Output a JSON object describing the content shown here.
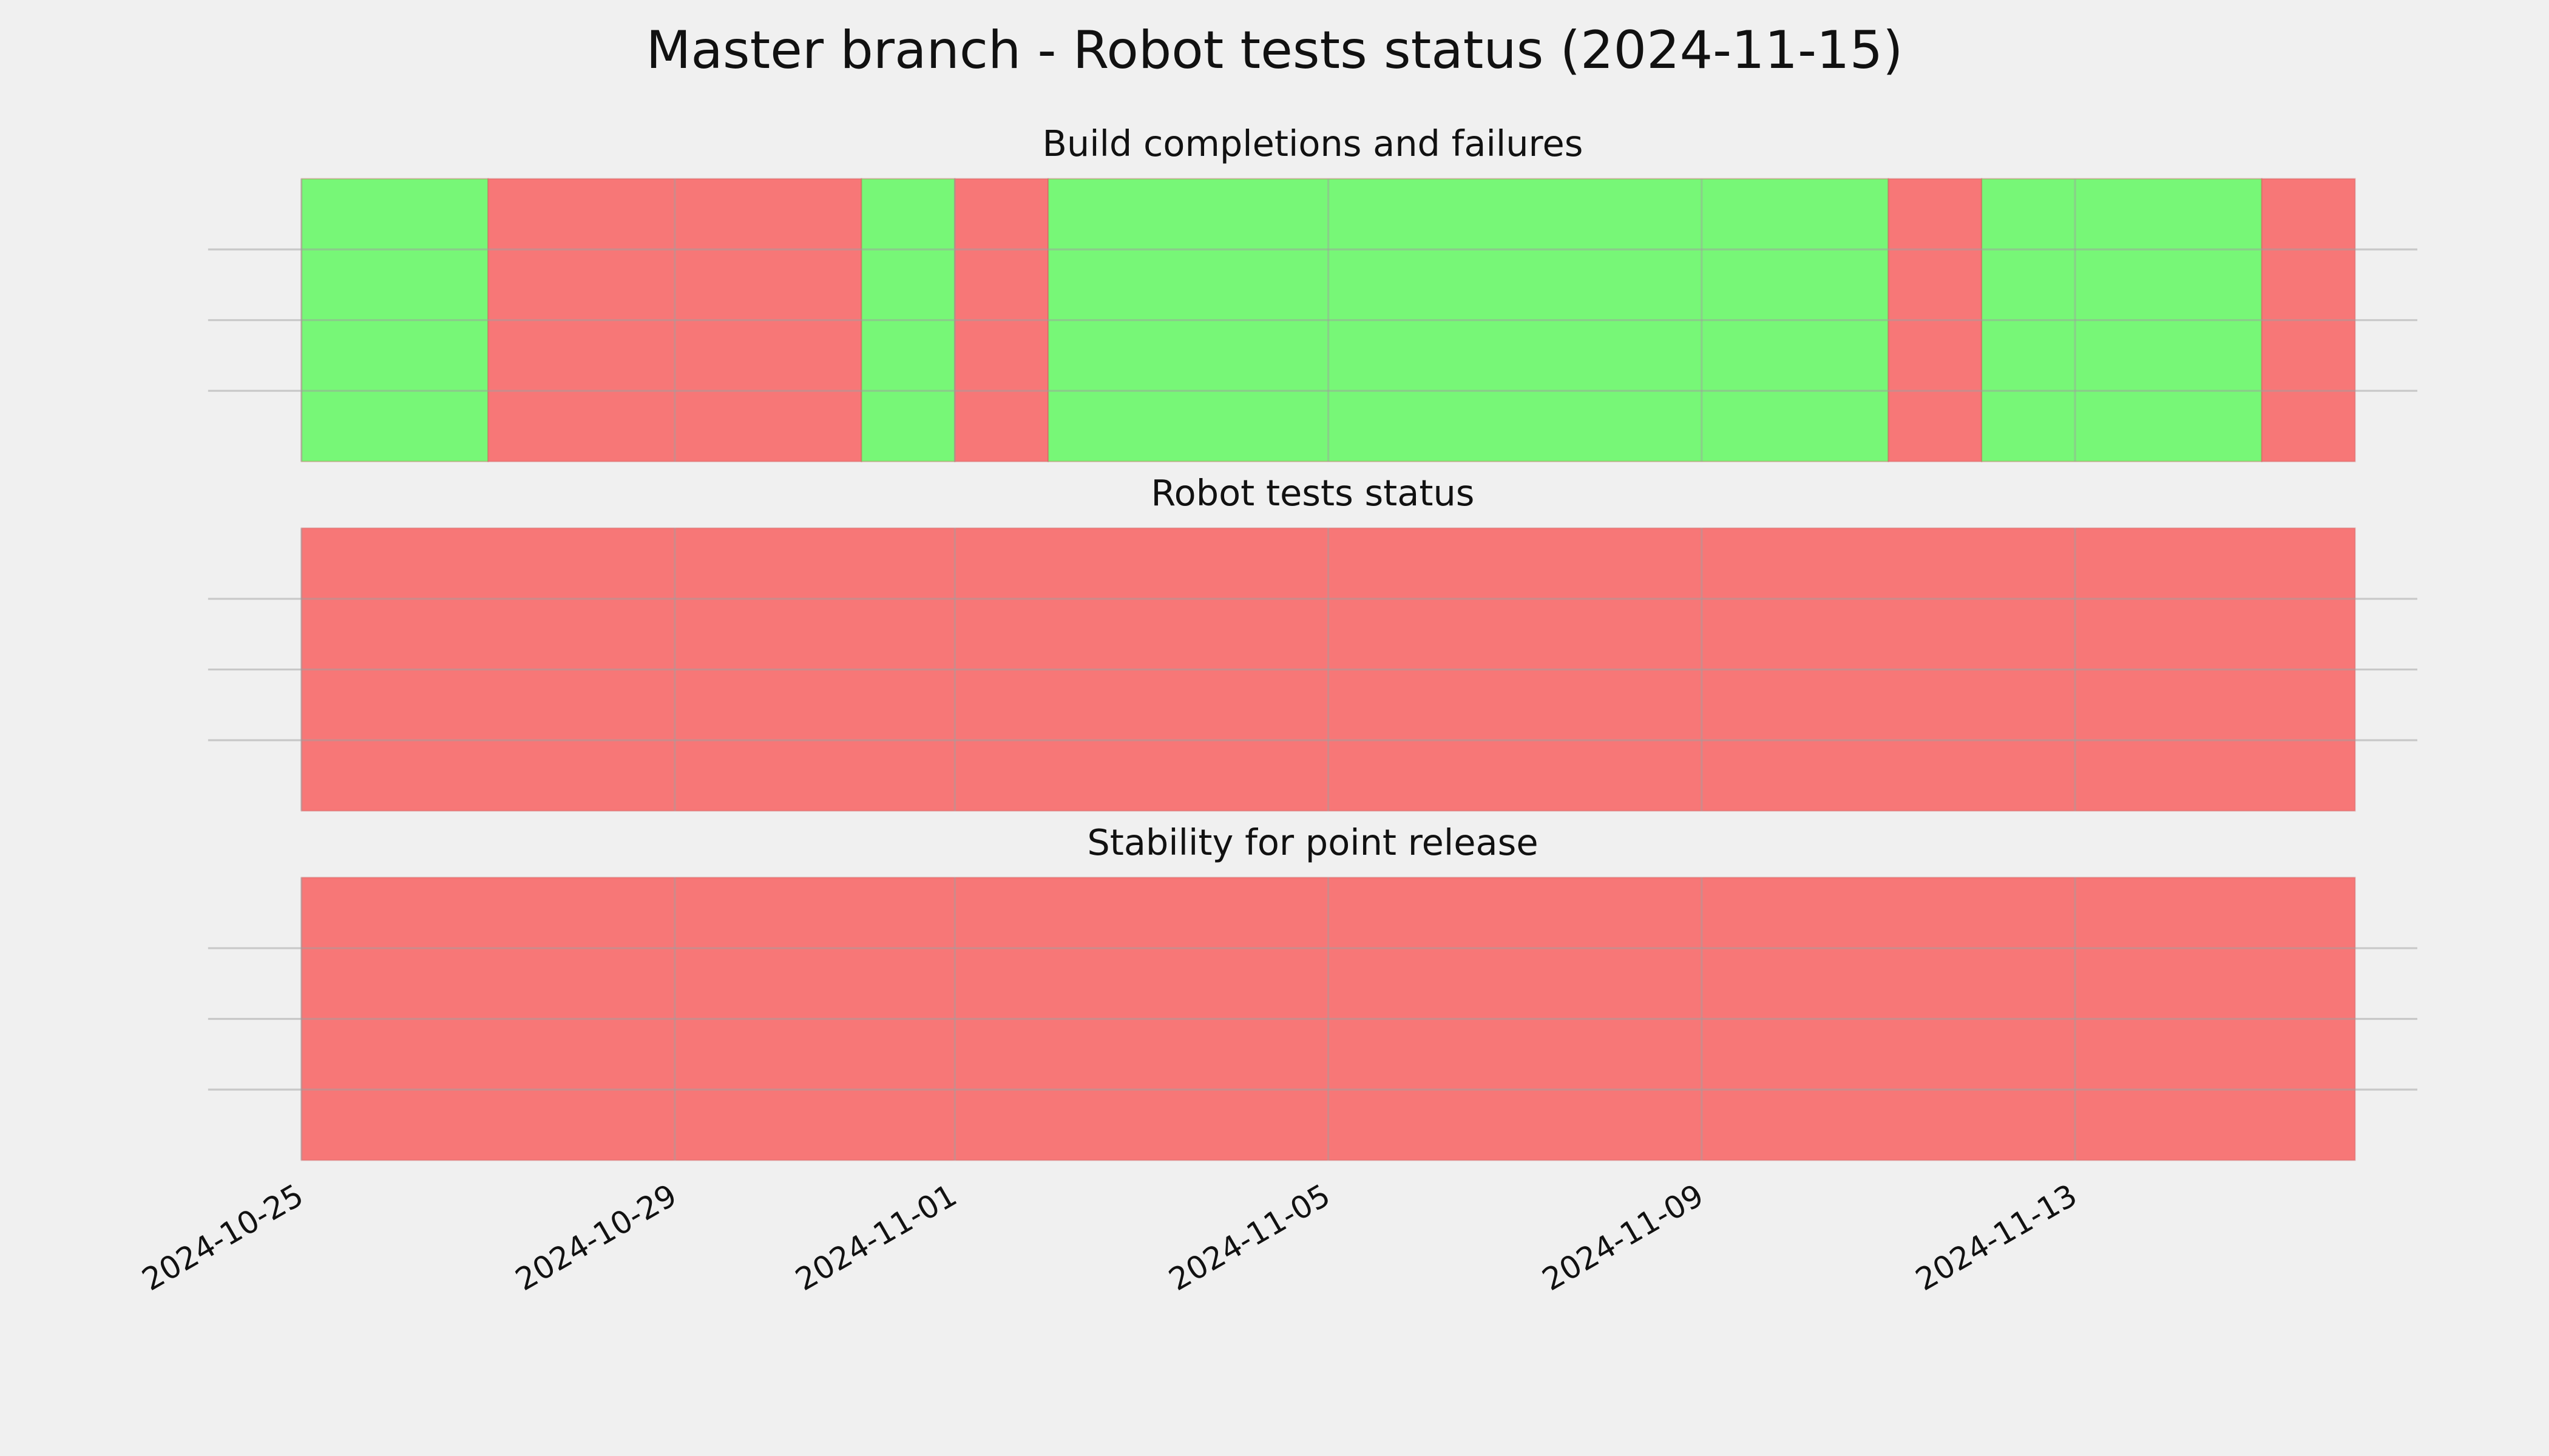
{
  "chart_data": {
    "type": "timeline",
    "title": "Master branch - Robot tests status (2024-11-15)",
    "xlim": [
      "2024-10-24",
      "2024-11-16T16:00"
    ],
    "xticks": [
      "2024-10-25",
      "2024-10-29",
      "2024-11-01",
      "2024-11-05",
      "2024-11-09",
      "2024-11-13"
    ],
    "grid": true,
    "panels": [
      {
        "title": "Build completions and failures",
        "ylim": [
          0,
          1
        ],
        "yticks": [
          0.25,
          0.5,
          0.75
        ],
        "segments": [
          {
            "start": "2024-10-25",
            "end": "2024-10-27",
            "color": "#77f777"
          },
          {
            "start": "2024-10-27",
            "end": "2024-10-31",
            "color": "#f77777"
          },
          {
            "start": "2024-10-31",
            "end": "2024-11-01",
            "color": "#77f777"
          },
          {
            "start": "2024-11-01",
            "end": "2024-11-02",
            "color": "#f77777"
          },
          {
            "start": "2024-11-02",
            "end": "2024-11-11",
            "color": "#77f777"
          },
          {
            "start": "2024-11-11",
            "end": "2024-11-12",
            "color": "#f77777"
          },
          {
            "start": "2024-11-12",
            "end": "2024-11-15",
            "color": "#77f777"
          },
          {
            "start": "2024-11-15",
            "end": "2024-11-16",
            "color": "#f77777"
          }
        ]
      },
      {
        "title": "Robot tests status",
        "ylim": [
          0,
          1
        ],
        "yticks": [
          0.25,
          0.5,
          0.75
        ],
        "segments": [
          {
            "start": "2024-10-25",
            "end": "2024-11-16",
            "color": "#f77777"
          }
        ]
      },
      {
        "title": "Stability for point release",
        "ylim": [
          0,
          1
        ],
        "yticks": [
          0.25,
          0.5,
          0.75
        ],
        "segments": [
          {
            "start": "2024-10-25",
            "end": "2024-11-16",
            "color": "#f77777"
          }
        ]
      }
    ]
  }
}
